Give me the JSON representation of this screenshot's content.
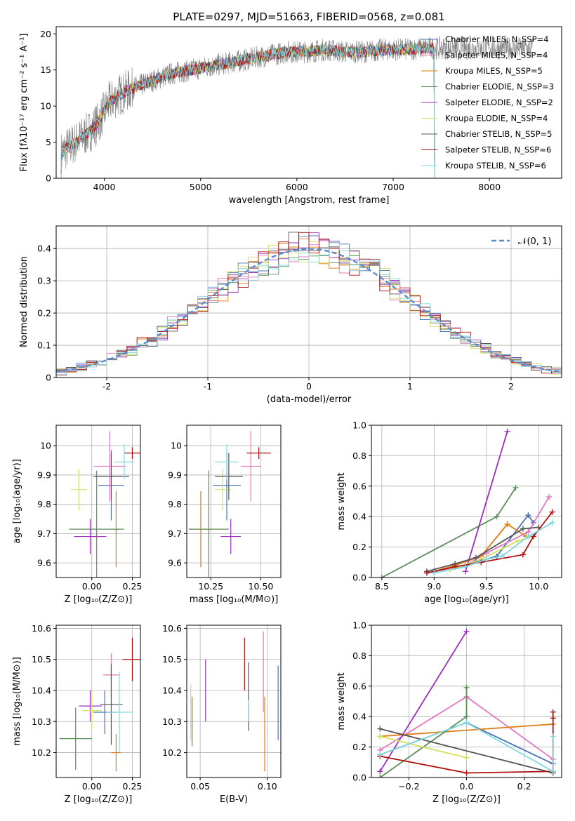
{
  "title": "PLATE=0297, MJD=51663, FIBERID=0568, z=0.081",
  "colors": [
    "#4c72b0",
    "#e377c2",
    "#e07b10",
    "#5b8e5b",
    "#9b30c0",
    "#d4e060",
    "#555555",
    "#b01010",
    "#7fd8e0"
  ],
  "chart_data": [
    {
      "type": "line",
      "panel": "spectrum",
      "xlabel": "wavelength [Angstrom, rest frame]",
      "ylabel": "Flux [fλ10⁻¹⁷ erg cm⁻² s⁻¹ A⁻¹]",
      "xlim": [
        3500,
        8750
      ],
      "ylim": [
        0,
        21
      ],
      "xticks": [
        4000,
        5000,
        6000,
        7000,
        8000
      ],
      "yticks": [
        0,
        5,
        10,
        15,
        20
      ],
      "legend_position": "right",
      "data_envelope": {
        "x": [
          3550,
          3700,
          3850,
          3950,
          4050,
          4150,
          4300,
          4500,
          4700,
          4900,
          5100,
          5300,
          5500,
          5700,
          5900,
          6100,
          6300,
          6500,
          6700,
          6900,
          7100,
          7300
        ],
        "y": [
          3.5,
          5.0,
          6.5,
          8.0,
          10.5,
          11.5,
          12.5,
          13.5,
          14.5,
          15.0,
          15.5,
          16.0,
          16.5,
          17.0,
          17.5,
          17.5,
          17.8,
          17.5,
          17.5,
          17.8,
          17.8,
          18.0
        ]
      },
      "model_cutoff": 7430,
      "series": [
        {
          "name": "Chabrier MILES, N_SSP=4"
        },
        {
          "name": "Salpeter MILES, N_SSP=4"
        },
        {
          "name": "Kroupa MILES, N_SSP=5"
        },
        {
          "name": "Chabrier ELODIE, N_SSP=3"
        },
        {
          "name": "Salpeter ELODIE, N_SSP=2"
        },
        {
          "name": "Kroupa ELODIE, N_SSP=4"
        },
        {
          "name": "Chabrier STELIB, N_SSP=5"
        },
        {
          "name": "Salpeter STELIB, N_SSP=6"
        },
        {
          "name": "Kroupa STELIB, N_SSP=6"
        }
      ]
    },
    {
      "type": "histogram",
      "panel": "residuals",
      "xlabel": "(data-model)/error",
      "ylabel": "Normed distribution",
      "xlim": [
        -2.5,
        2.5
      ],
      "ylim": [
        0,
        0.47
      ],
      "xticks": [
        -2,
        -1,
        0,
        1,
        2
      ],
      "yticks": [
        0.0,
        0.1,
        0.2,
        0.3,
        0.4
      ],
      "legend": "𝒩(0, 1)",
      "legend_position": "top-right",
      "bin_width": 0.1,
      "bin_start": -2.5,
      "base_curve": "gaussian"
    },
    {
      "type": "scatter",
      "panel": "age-vs-Z",
      "xlabel": "Z [log₁₀(Z/Z⊙)]",
      "ylabel": "age  [log₁₀(age/yr)]",
      "xlim": [
        -0.22,
        0.3
      ],
      "ylim": [
        9.55,
        10.07
      ],
      "xticks": [
        0.0,
        0.25
      ],
      "xticklabels": [
        "0.00",
        "0.25"
      ],
      "yticks": [
        9.6,
        9.7,
        9.8,
        9.9,
        10.0
      ],
      "points": [
        {
          "x": 0.12,
          "y": 9.865,
          "xerr": 0.08,
          "yerr": 0.12
        },
        {
          "x": 0.11,
          "y": 9.93,
          "xerr": 0.1,
          "yerr": 0.12
        },
        {
          "x": 0.15,
          "y": 9.715,
          "xerr": 0.02,
          "yerr": 0.13
        },
        {
          "x": 0.03,
          "y": 9.715,
          "xerr": 0.17,
          "yerr": 0.2
        },
        {
          "x": -0.01,
          "y": 9.69,
          "xerr": 0.1,
          "yerr": 0.06
        },
        {
          "x": -0.08,
          "y": 9.85,
          "xerr": 0.05,
          "yerr": 0.07
        },
        {
          "x": 0.12,
          "y": 9.895,
          "xerr": 0.11,
          "yerr": 0.08
        },
        {
          "x": 0.25,
          "y": 9.975,
          "xerr": 0.05,
          "yerr": 0.02
        },
        {
          "x": 0.2,
          "y": 9.945,
          "xerr": 0.06,
          "yerr": 0.06
        }
      ]
    },
    {
      "type": "scatter",
      "panel": "age-vs-mass",
      "xlabel": "mass [log₁₀(M/M⊙)]",
      "xlim": [
        10.13,
        10.6
      ],
      "ylim": [
        9.55,
        10.07
      ],
      "xticks": [
        10.25,
        10.5
      ],
      "xticklabels": [
        "10.25",
        "10.50"
      ],
      "yticks": [
        9.6,
        9.7,
        9.8,
        9.9,
        10.0
      ],
      "points": [
        {
          "x": 10.33,
          "y": 9.865,
          "xerr": 0.07,
          "yerr": 0.12
        },
        {
          "x": 10.45,
          "y": 9.93,
          "xerr": 0.05,
          "yerr": 0.12
        },
        {
          "x": 10.2,
          "y": 9.715,
          "xerr": 0.06,
          "yerr": 0.13
        },
        {
          "x": 10.24,
          "y": 9.715,
          "xerr": 0.1,
          "yerr": 0.2
        },
        {
          "x": 10.35,
          "y": 9.69,
          "xerr": 0.05,
          "yerr": 0.06
        },
        {
          "x": 10.31,
          "y": 9.85,
          "xerr": 0.04,
          "yerr": 0.07
        },
        {
          "x": 10.34,
          "y": 9.895,
          "xerr": 0.07,
          "yerr": 0.08
        },
        {
          "x": 10.49,
          "y": 9.975,
          "xerr": 0.06,
          "yerr": 0.02
        },
        {
          "x": 10.33,
          "y": 9.945,
          "xerr": 0.06,
          "yerr": 0.06
        }
      ]
    },
    {
      "type": "line",
      "panel": "mass-weight-vs-age",
      "xlabel": "age  [log₁₀(age/yr)]",
      "ylabel": "mass weight",
      "xlim": [
        8.4,
        10.22
      ],
      "ylim": [
        0,
        1
      ],
      "xticks": [
        8.5,
        9.0,
        9.5,
        10.0
      ],
      "xticklabels": [
        "8.5",
        "9.0",
        "9.5",
        "10.0"
      ],
      "yticks": [
        0,
        0.2,
        0.4,
        0.6,
        0.8,
        1.0
      ],
      "yticklabels": [
        "0.0",
        "0.2",
        "0.4",
        "0.6",
        "0.8",
        "1.0"
      ],
      "series": [
        {
          "x": [
            9.0,
            9.3,
            9.6,
            9.9,
            9.95
          ],
          "y": [
            0.04,
            0.08,
            0.14,
            0.41,
            0.36
          ]
        },
        {
          "x": [
            9.0,
            9.3,
            9.5,
            9.9,
            10.1
          ],
          "y": [
            0.04,
            0.08,
            0.16,
            0.3,
            0.53
          ]
        },
        {
          "x": [
            9.0,
            9.2,
            9.45,
            9.7,
            9.88
          ],
          "y": [
            0.04,
            0.08,
            0.14,
            0.35,
            0.27
          ]
        },
        {
          "x": [
            8.5,
            9.6,
            9.78
          ],
          "y": [
            0.0,
            0.4,
            0.59
          ]
        },
        {
          "x": [
            9.3,
            9.7
          ],
          "y": [
            0.04,
            0.96
          ]
        },
        {
          "x": [
            9.15,
            9.45,
            9.8,
            9.95
          ],
          "y": [
            0.05,
            0.12,
            0.24,
            0.27
          ]
        },
        {
          "x": [
            8.93,
            9.2,
            9.4,
            9.85,
            10.0
          ],
          "y": [
            0.04,
            0.09,
            0.13,
            0.32,
            0.33
          ]
        },
        {
          "x": [
            8.93,
            9.2,
            9.45,
            9.85,
            9.95,
            10.13
          ],
          "y": [
            0.03,
            0.07,
            0.1,
            0.15,
            0.27,
            0.43
          ]
        },
        {
          "x": [
            9.0,
            9.3,
            9.5,
            9.65,
            9.9,
            10.13
          ],
          "y": [
            0.03,
            0.07,
            0.12,
            0.14,
            0.27,
            0.36
          ]
        }
      ]
    },
    {
      "type": "scatter",
      "panel": "mass-vs-Z",
      "xlabel": "Z [log₁₀(Z/Z⊙)]",
      "ylabel": "mass [log₁₀(M/M⊙)]",
      "xlim": [
        -0.22,
        0.3
      ],
      "ylim": [
        10.12,
        10.61
      ],
      "xticks": [
        0.0,
        0.25
      ],
      "xticklabels": [
        "0.00",
        "0.25"
      ],
      "yticks": [
        10.2,
        10.3,
        10.4,
        10.5,
        10.6
      ],
      "points": [
        {
          "x": 0.08,
          "y": 10.33,
          "xerr": 0.07,
          "yerr": 0.07
        },
        {
          "x": 0.12,
          "y": 10.45,
          "xerr": 0.05,
          "yerr": 0.07
        },
        {
          "x": 0.15,
          "y": 10.2,
          "xerr": 0.03,
          "yerr": 0.06
        },
        {
          "x": -0.1,
          "y": 10.245,
          "xerr": 0.1,
          "yerr": 0.1
        },
        {
          "x": -0.01,
          "y": 10.35,
          "xerr": 0.07,
          "yerr": 0.05
        },
        {
          "x": 0.0,
          "y": 10.335,
          "xerr": 0.06,
          "yerr": 0.06
        },
        {
          "x": 0.12,
          "y": 10.355,
          "xerr": 0.07,
          "yerr": 0.13
        },
        {
          "x": 0.25,
          "y": 10.5,
          "xerr": 0.06,
          "yerr": 0.07
        },
        {
          "x": 0.17,
          "y": 10.33,
          "xerr": 0.08,
          "yerr": 0.13
        }
      ]
    },
    {
      "type": "errorbar",
      "panel": "mass-vs-EBV",
      "xlabel": "E(B-V)",
      "xlim": [
        0.04,
        0.11
      ],
      "ylim": [
        10.12,
        10.61
      ],
      "xticks": [
        0.05,
        0.1
      ],
      "xticklabels": [
        "0.05",
        "0.10"
      ],
      "yticks": [
        10.2,
        10.3,
        10.4,
        10.5,
        10.6
      ],
      "bars": [
        {
          "x": 0.108,
          "ylo": 10.24,
          "yhi": 10.48
        },
        {
          "x": 0.097,
          "ylo": 10.33,
          "yhi": 10.59
        },
        {
          "x": 0.098,
          "ylo": 10.14,
          "yhi": 10.38
        },
        {
          "x": 0.044,
          "ylo": 10.22,
          "yhi": 10.38
        },
        {
          "x": 0.054,
          "ylo": 10.3,
          "yhi": 10.5
        },
        {
          "x": 0.043,
          "ylo": 10.24,
          "yhi": 10.42
        },
        {
          "x": 0.086,
          "ylo": 10.27,
          "yhi": 10.49
        },
        {
          "x": 0.083,
          "ylo": 10.4,
          "yhi": 10.57
        },
        {
          "x": 0.086,
          "ylo": 10.3,
          "yhi": 10.37
        }
      ]
    },
    {
      "type": "line",
      "panel": "mass-weight-vs-Z",
      "xlabel": "Z [log₁₀(Z/Z⊙)]",
      "ylabel": "mass weight",
      "xlim": [
        -0.33,
        0.33
      ],
      "ylim": [
        0,
        1
      ],
      "xticks": [
        -0.2,
        0.0,
        0.2
      ],
      "xticklabels": [
        "−0.2",
        "0.0",
        "0.2"
      ],
      "yticks": [
        0,
        0.2,
        0.4,
        0.6,
        0.8,
        1.0
      ],
      "yticklabels": [
        "0.0",
        "0.2",
        "0.4",
        "0.6",
        "0.8",
        "1.0"
      ],
      "series": [
        {
          "x": [
            -0.3,
            0.0,
            0.3
          ],
          "y": [
            0.15,
            0.36,
            0.09
          ]
        },
        {
          "x": [
            -0.3,
            0.0,
            0.3
          ],
          "y": [
            0.18,
            0.53,
            0.12
          ]
        },
        {
          "x": [
            -0.3,
            0.3
          ],
          "y": [
            0.27,
            0.35
          ]
        },
        {
          "x": [
            -0.3,
            0.0,
            0.0
          ],
          "y": [
            0.0,
            0.4,
            0.59
          ]
        },
        {
          "x": [
            -0.3,
            0.0
          ],
          "y": [
            0.04,
            0.96
          ]
        },
        {
          "x": [
            -0.3,
            0.0
          ],
          "y": [
            0.27,
            0.13
          ]
        },
        {
          "x": [
            -0.3,
            0.3
          ],
          "y": [
            0.32,
            0.03
          ]
        },
        {
          "x": [
            -0.3,
            0.0,
            0.3,
            0.3,
            0.3
          ],
          "y": [
            0.14,
            0.03,
            0.04,
            0.39,
            0.43
          ]
        },
        {
          "x": [
            -0.3,
            0.0,
            0.3,
            0.3
          ],
          "y": [
            0.15,
            0.36,
            0.04,
            0.27
          ]
        }
      ]
    }
  ]
}
